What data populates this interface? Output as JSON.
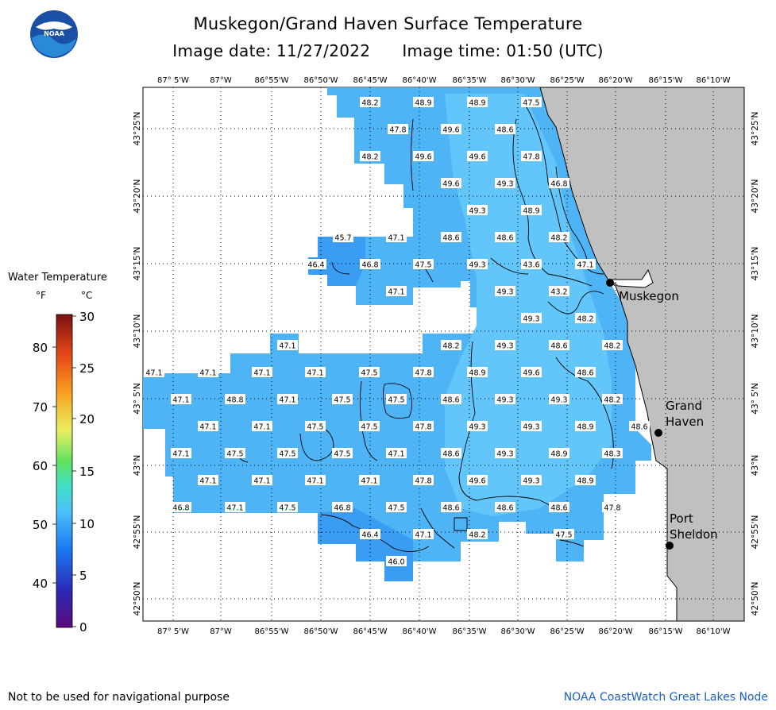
{
  "title": "Muskegon/Grand Haven Surface Temperature",
  "image_date": "Image date: 11/27/2022",
  "image_time": "Image time: 01:50 (UTC)",
  "logo_text": "NOAA",
  "longitude_labels": [
    "87° 5'W",
    "87°W",
    "86°55'W",
    "86°50'W",
    "86°45'W",
    "86°40'W",
    "86°35'W",
    "86°30'W",
    "86°25'W",
    "86°20'W",
    "86°15'W",
    "86°10'W"
  ],
  "latitude_labels": [
    "43°25'N",
    "43°20'N",
    "43°15'N",
    "43°10'N",
    "43° 5'N",
    "43°N",
    "42°55'N",
    "42°50'N"
  ],
  "legend": {
    "title": "Water Temperature",
    "unit_f": "°F",
    "unit_c": "°C",
    "f_ticks": [
      "80",
      "70",
      "60",
      "50",
      "40"
    ],
    "c_ticks": [
      "30",
      "25",
      "20",
      "15",
      "10",
      "5",
      "0"
    ]
  },
  "cities": [
    {
      "name_lines": [
        "Muskegon"
      ]
    },
    {
      "name_lines": [
        "Grand",
        "Haven"
      ]
    },
    {
      "name_lines": [
        "Port",
        "Sheldon"
      ]
    }
  ],
  "temperature_rows": [
    [
      "48.2",
      "48.9",
      "48.9",
      "47.5"
    ],
    [
      "47.8",
      "49.6",
      "48.6"
    ],
    [
      "48.2",
      "49.6",
      "49.6",
      "47.8"
    ],
    [
      "49.6",
      "49.3",
      "46.8"
    ],
    [
      "49.3",
      "48.9"
    ],
    [
      "45.7",
      "47.1",
      "48.6",
      "48.6",
      "48.2"
    ],
    [
      "46.4",
      "46.8",
      "47.5",
      "49.3",
      "43.6",
      "47.1"
    ],
    [
      "47.1",
      "49.3",
      "43.2"
    ],
    [
      "49.3",
      "48.2"
    ],
    [
      "47.1",
      "48.2",
      "49.3",
      "48.6",
      "48.2"
    ],
    [
      "47.1",
      "47.1",
      "47.1",
      "47.1",
      "47.5",
      "47.8",
      "48.9",
      "49.6",
      "48.6"
    ],
    [
      "47.1",
      "48.8",
      "47.1",
      "47.5",
      "47.5",
      "48.6",
      "49.3",
      "49.3",
      "48.2"
    ],
    [
      "47.1",
      "47.1",
      "47.5",
      "47.5",
      "47.8",
      "49.3",
      "49.3",
      "48.9",
      "48.6"
    ],
    [
      "47.1",
      "47.5",
      "47.5",
      "47.5",
      "47.1",
      "48.6",
      "49.3",
      "48.9",
      "48.3"
    ],
    [
      "47.1",
      "47.1",
      "47.1",
      "47.1",
      "47.8",
      "49.6",
      "49.3",
      "48.9"
    ],
    [
      "46.8",
      "47.1",
      "47.5",
      "46.8",
      "47.5",
      "48.6",
      "48.6",
      "48.6",
      "47.8"
    ],
    [
      "46.4",
      "47.1",
      "48.2",
      "47.5"
    ],
    [
      "46.0"
    ]
  ],
  "colors": {
    "land": "#c0c0c0",
    "water_cool": "#2e8ff0",
    "water_mid": "#46aaf5",
    "water_warm": "#5cc0f8",
    "footer_link": "#1a5fc8"
  },
  "footer_left": "Not to be used for navigational purpose",
  "footer_right": "NOAA CoastWatch Great Lakes Node"
}
